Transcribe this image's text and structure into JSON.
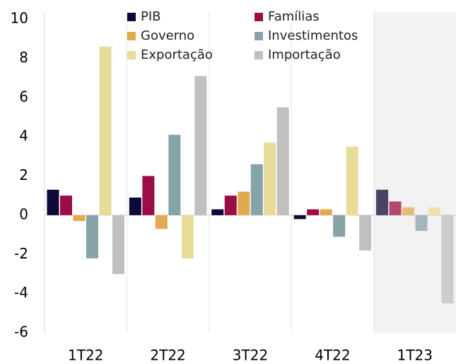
{
  "chart_data": {
    "type": "bar",
    "categories": [
      "1T22",
      "2T22",
      "3T22",
      "4T22",
      "1T23"
    ],
    "series": [
      {
        "name": "PIB",
        "color": "#0d0a3a",
        "values": [
          1.3,
          0.9,
          0.3,
          -0.2,
          1.3
        ]
      },
      {
        "name": "Famílias",
        "color": "#9b0d47",
        "values": [
          1.0,
          2.0,
          1.0,
          0.3,
          0.7
        ]
      },
      {
        "name": "Governo",
        "color": "#e3a951",
        "values": [
          -0.3,
          -0.7,
          1.2,
          0.3,
          0.4
        ]
      },
      {
        "name": "Investimentos",
        "color": "#86a3a8",
        "values": [
          -2.2,
          4.1,
          2.6,
          -1.1,
          -0.8
        ]
      },
      {
        "name": "Exportação",
        "color": "#e8dc9a",
        "values": [
          8.6,
          -2.2,
          3.7,
          3.5,
          0.4
        ]
      },
      {
        "name": "Importação",
        "color": "#c0c0c0",
        "values": [
          -3.0,
          7.1,
          5.5,
          -1.8,
          -4.5
        ]
      }
    ],
    "ylim": [
      -6,
      10
    ],
    "yticks": [
      -6,
      -4,
      -2,
      0,
      2,
      4,
      6,
      8,
      10
    ],
    "grid": false
  }
}
